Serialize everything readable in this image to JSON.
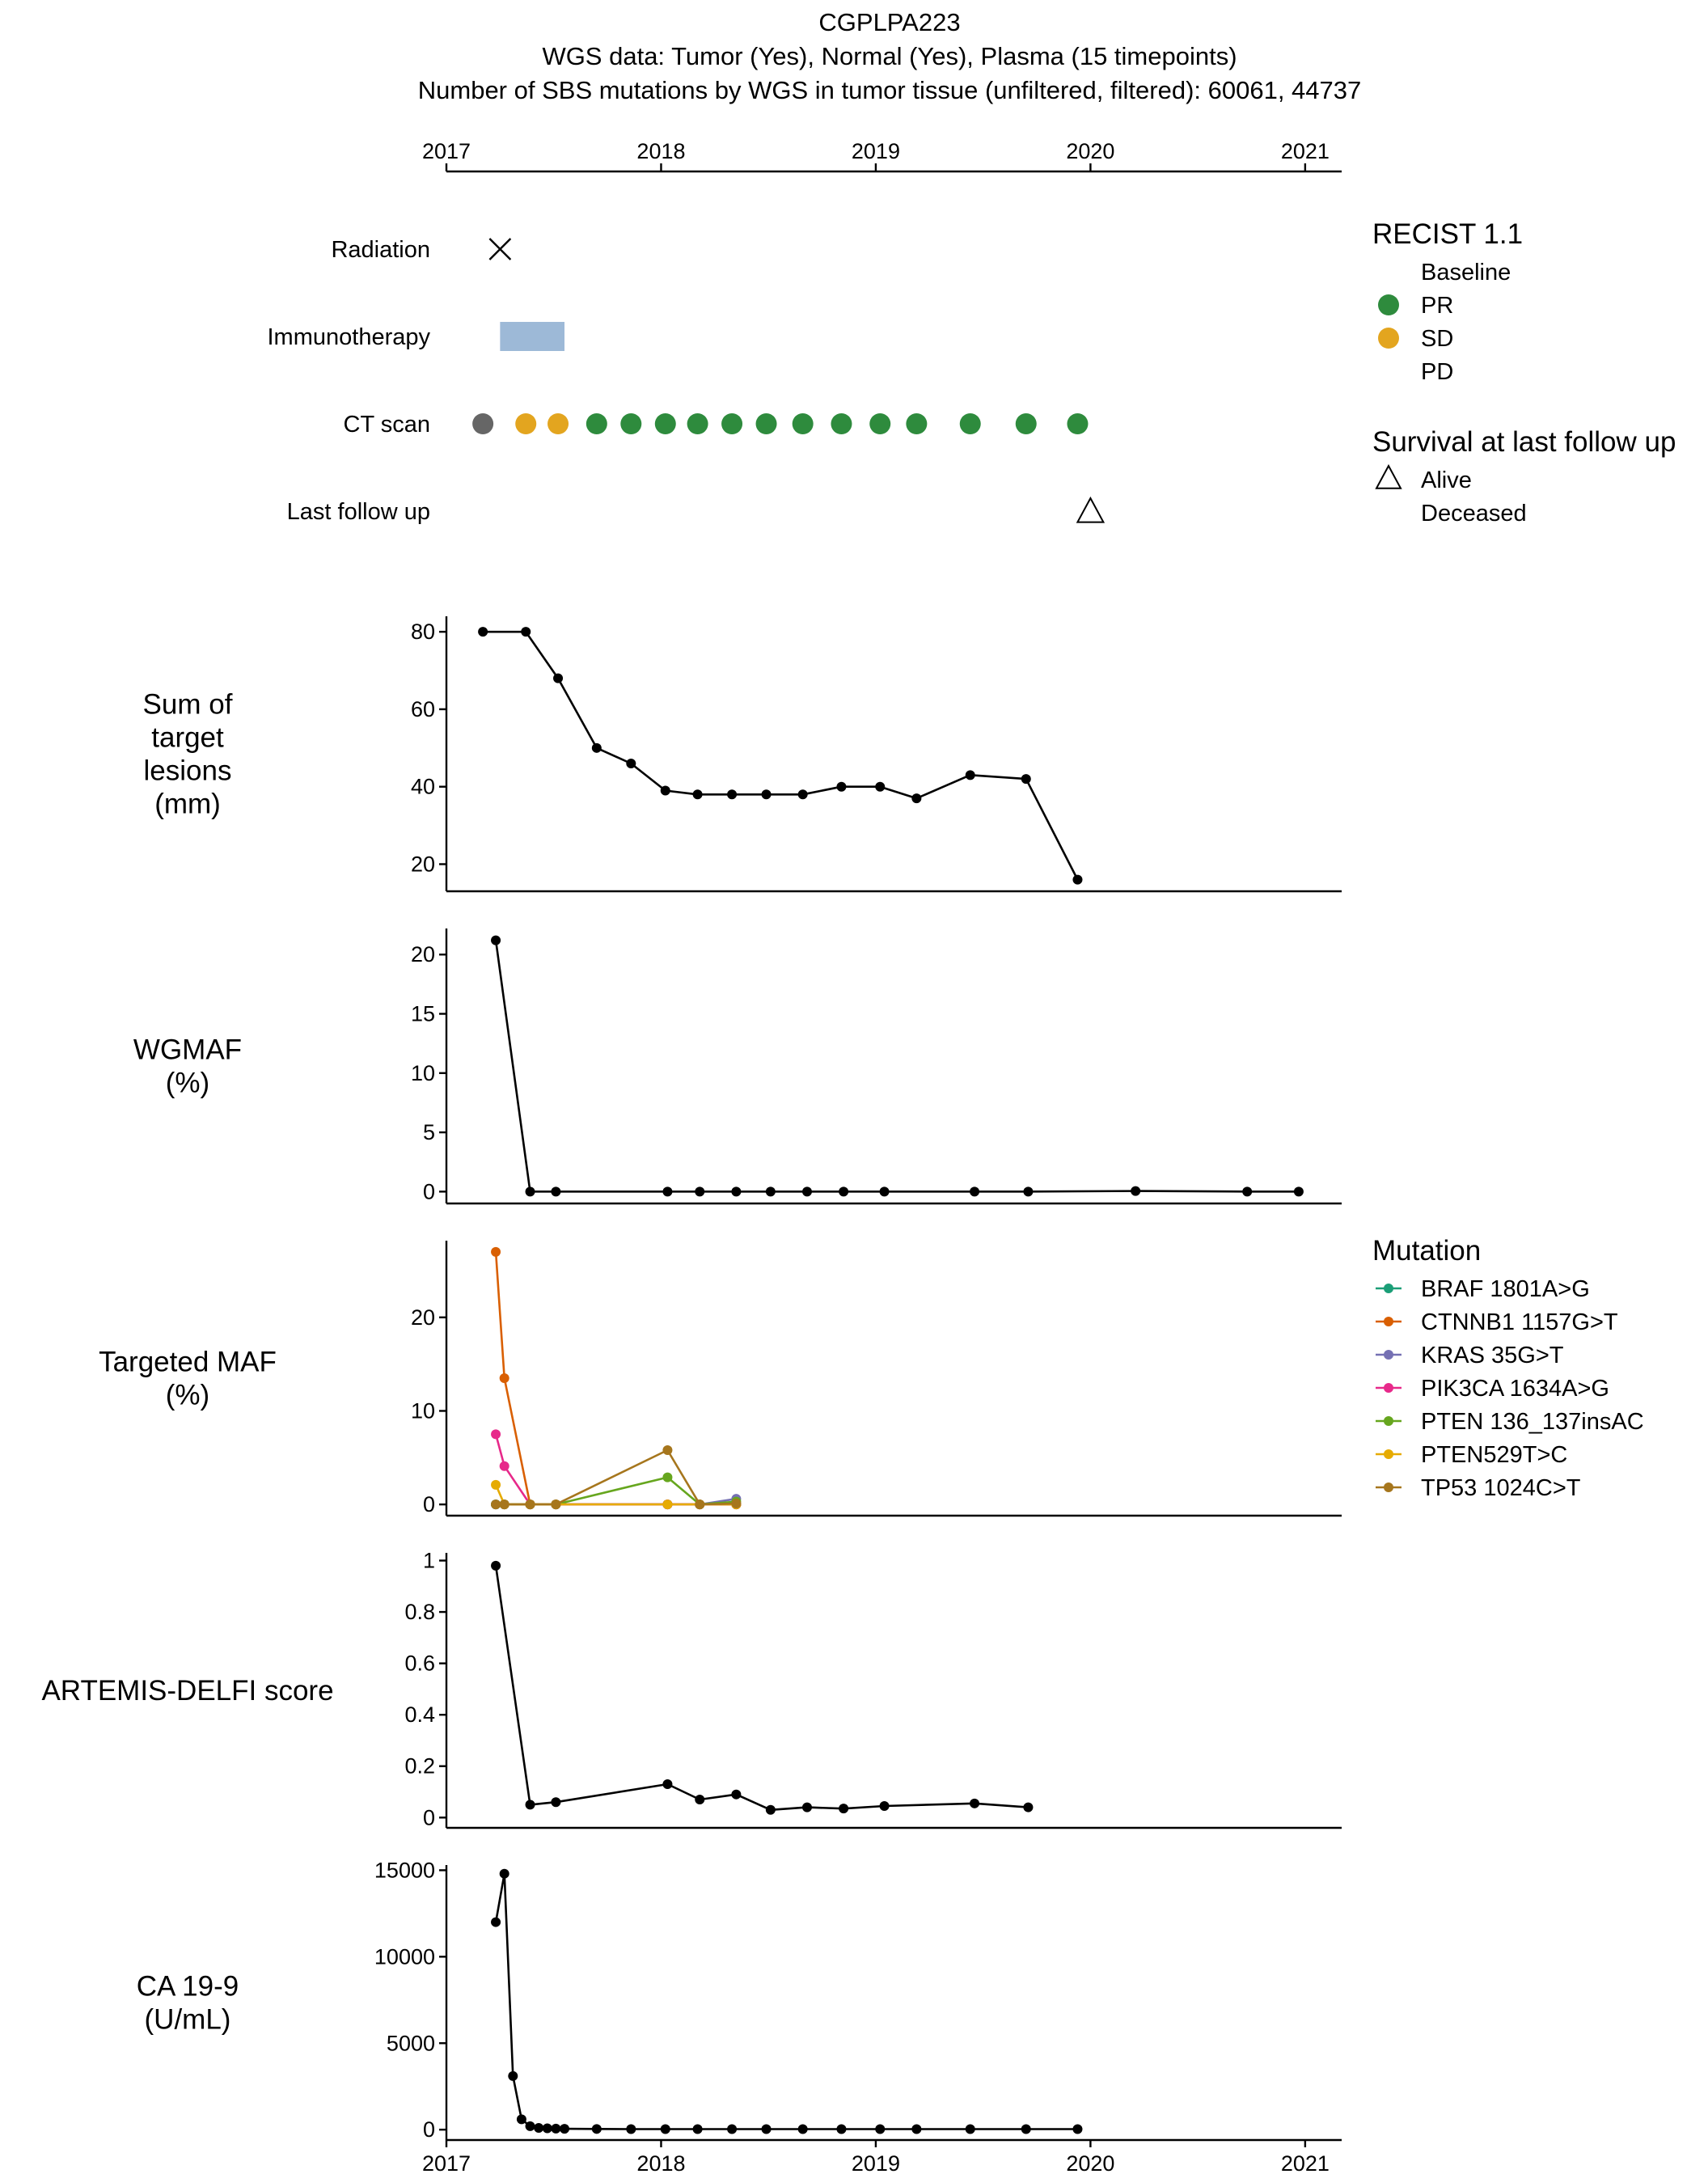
{
  "titles": [
    "CGPLPA223",
    "WGS data: Tumor (Yes), Normal (Yes), Plasma (15 timepoints)",
    "Number of SBS mutations by WGS in tumor tissue (unfiltered, filtered): 60061, 44737"
  ],
  "chart_data": {
    "type": "line",
    "x_axis": {
      "range": [
        2017,
        2021.17
      ],
      "tick_values": [
        2017,
        2018,
        2019,
        2020,
        2021
      ],
      "tick_labels": [
        "2017",
        "2018",
        "2019",
        "2020",
        "2021"
      ]
    },
    "timeline": {
      "rows": [
        "Radiation",
        "Immunotherapy",
        "CT scan",
        "Last follow up"
      ],
      "radiation": [
        2017.25
      ],
      "immunotherapy": {
        "start": 2017.25,
        "end": 2017.55
      },
      "ct_scans": [
        {
          "x": 2017.17,
          "status": "Baseline"
        },
        {
          "x": 2017.37,
          "status": "SD"
        },
        {
          "x": 2017.52,
          "status": "SD"
        },
        {
          "x": 2017.7,
          "status": "PR"
        },
        {
          "x": 2017.86,
          "status": "PR"
        },
        {
          "x": 2018.02,
          "status": "PR"
        },
        {
          "x": 2018.17,
          "status": "PR"
        },
        {
          "x": 2018.33,
          "status": "PR"
        },
        {
          "x": 2018.49,
          "status": "PR"
        },
        {
          "x": 2018.66,
          "status": "PR"
        },
        {
          "x": 2018.84,
          "status": "PR"
        },
        {
          "x": 2019.02,
          "status": "PR"
        },
        {
          "x": 2019.19,
          "status": "PR"
        },
        {
          "x": 2019.44,
          "status": "PR"
        },
        {
          "x": 2019.7,
          "status": "PR"
        },
        {
          "x": 2019.94,
          "status": "PR"
        }
      ],
      "last_follow_up": {
        "x": 2020.0,
        "survival": "Alive"
      }
    },
    "panels": [
      {
        "id": "lesions",
        "ylabel": [
          "Sum of",
          "target",
          "lesions",
          "(mm)"
        ],
        "ylim": [
          13,
          84
        ],
        "yticks": [
          20,
          40,
          60,
          80
        ],
        "series": [
          {
            "x": [
              2017.17,
              2017.37,
              2017.52,
              2017.7,
              2017.86,
              2018.02,
              2018.17,
              2018.33,
              2018.49,
              2018.66,
              2018.84,
              2019.02,
              2019.19,
              2019.44,
              2019.7,
              2019.94
            ],
            "y": [
              80,
              80,
              68,
              50,
              46,
              39,
              38,
              38,
              38,
              38,
              40,
              40,
              37,
              43,
              42,
              16
            ]
          }
        ]
      },
      {
        "id": "wgmaf",
        "ylabel": [
          "WGMAF",
          "(%)"
        ],
        "ylim": [
          -1,
          22.2
        ],
        "yticks": [
          0,
          5,
          10,
          15,
          20
        ],
        "series": [
          {
            "x": [
              2017.23,
              2017.39,
              2017.51,
              2018.03,
              2018.18,
              2018.35,
              2018.51,
              2018.68,
              2018.85,
              2019.04,
              2019.46,
              2019.71,
              2020.21,
              2020.73,
              2020.97
            ],
            "y": [
              21.2,
              0,
              0,
              0,
              0,
              0,
              0,
              0,
              0,
              0,
              0,
              0,
              0.05,
              0,
              0
            ]
          }
        ]
      },
      {
        "id": "targeted",
        "ylabel": [
          "Targeted MAF",
          "(%)"
        ],
        "ylim": [
          -1.2,
          28.2
        ],
        "yticks": [
          0,
          10,
          20
        ],
        "series": [
          {
            "name": "BRAF 1801A>G",
            "color": "#1b9e77",
            "x": [
              2017.23,
              2017.27,
              2017.39,
              2017.51,
              2018.03,
              2018.18,
              2018.35
            ],
            "y": [
              0,
              0,
              0,
              0,
              0,
              0,
              0
            ]
          },
          {
            "name": "CTNNB1 1157G>T",
            "color": "#d95f02",
            "x": [
              2017.23,
              2017.27,
              2017.39,
              2017.51,
              2018.03,
              2018.18,
              2018.35
            ],
            "y": [
              27,
              13.5,
              0,
              0,
              0,
              0,
              0
            ]
          },
          {
            "name": "KRAS 35G>T",
            "color": "#7570b3",
            "x": [
              2017.23,
              2017.27,
              2017.39,
              2017.51,
              2018.03,
              2018.18,
              2018.35
            ],
            "y": [
              0,
              0,
              0,
              0,
              0,
              0,
              0.6
            ]
          },
          {
            "name": "PIK3CA 1634A>G",
            "color": "#e7298a",
            "x": [
              2017.23,
              2017.27,
              2017.39,
              2017.51,
              2018.03,
              2018.18,
              2018.35
            ],
            "y": [
              7.5,
              4.1,
              0,
              0,
              0,
              0,
              0
            ]
          },
          {
            "name": "PTEN 136_137insAC",
            "color": "#66a61e",
            "x": [
              2017.23,
              2017.27,
              2017.39,
              2017.51,
              2018.03,
              2018.18,
              2018.35
            ],
            "y": [
              0,
              0,
              0,
              0,
              2.9,
              0,
              0.3
            ]
          },
          {
            "name": "PTEN529T>C",
            "color": "#e6ab02",
            "x": [
              2017.23,
              2017.27,
              2017.39,
              2017.51,
              2018.03,
              2018.18,
              2018.35
            ],
            "y": [
              2.1,
              0,
              0,
              0,
              0,
              0,
              0
            ]
          },
          {
            "name": "TP53 1024C>T",
            "color": "#a6761d",
            "x": [
              2017.23,
              2017.27,
              2017.39,
              2017.51,
              2018.03,
              2018.18,
              2018.35
            ],
            "y": [
              0,
              0,
              0,
              0,
              5.8,
              0,
              0.1
            ]
          }
        ]
      },
      {
        "id": "artemis",
        "ylabel": [
          "ARTEMIS-DELFI score"
        ],
        "ylim": [
          -0.04,
          1.03
        ],
        "yticks": [
          0,
          0.2,
          0.4,
          0.6,
          0.8,
          1
        ],
        "ytick_labels": [
          "0",
          "0.2",
          "0.4",
          "0.6",
          "0.8",
          "1"
        ],
        "series": [
          {
            "x": [
              2017.23,
              2017.39,
              2017.51,
              2018.03,
              2018.18,
              2018.35,
              2018.51,
              2018.68,
              2018.85,
              2019.04,
              2019.46,
              2019.71
            ],
            "y": [
              0.98,
              0.05,
              0.06,
              0.13,
              0.07,
              0.09,
              0.03,
              0.04,
              0.035,
              0.045,
              0.055,
              0.04
            ]
          }
        ]
      },
      {
        "id": "ca199",
        "ylabel": [
          "CA 19-9",
          "(U/mL)"
        ],
        "ylim": [
          -600,
          15300
        ],
        "yticks": [
          0,
          5000,
          10000,
          15000
        ],
        "series": [
          {
            "x": [
              2017.23,
              2017.27,
              2017.31,
              2017.35,
              2017.39,
              2017.43,
              2017.47,
              2017.51,
              2017.55,
              2017.7,
              2017.86,
              2018.02,
              2018.17,
              2018.33,
              2018.49,
              2018.66,
              2018.84,
              2019.02,
              2019.19,
              2019.44,
              2019.7,
              2019.94
            ],
            "y": [
              12000,
              14800,
              3100,
              600,
              200,
              100,
              80,
              60,
              50,
              40,
              30,
              30,
              30,
              30,
              30,
              30,
              30,
              30,
              30,
              30,
              30,
              30
            ]
          }
        ]
      }
    ],
    "legends": {
      "recist_title": "RECIST 1.1",
      "recist": [
        {
          "label": "Baseline",
          "color": "#666666",
          "show_marker": false
        },
        {
          "label": "PR",
          "color": "#2e8b3d",
          "show_marker": true
        },
        {
          "label": "SD",
          "color": "#e3a51f",
          "show_marker": true
        },
        {
          "label": "PD",
          "color": "#cc3333",
          "show_marker": false
        }
      ],
      "survival_title": "Survival at last follow up",
      "survival": [
        {
          "label": "Alive",
          "marker": "triangle"
        },
        {
          "label": "Deceased",
          "marker": "none"
        }
      ],
      "mutation_title": "Mutation"
    },
    "colors": {
      "immunotherapy": "#9db9d7",
      "baseline": "#666666",
      "pr": "#2e8b3d",
      "sd": "#e3a51f",
      "line": "#000000"
    }
  }
}
